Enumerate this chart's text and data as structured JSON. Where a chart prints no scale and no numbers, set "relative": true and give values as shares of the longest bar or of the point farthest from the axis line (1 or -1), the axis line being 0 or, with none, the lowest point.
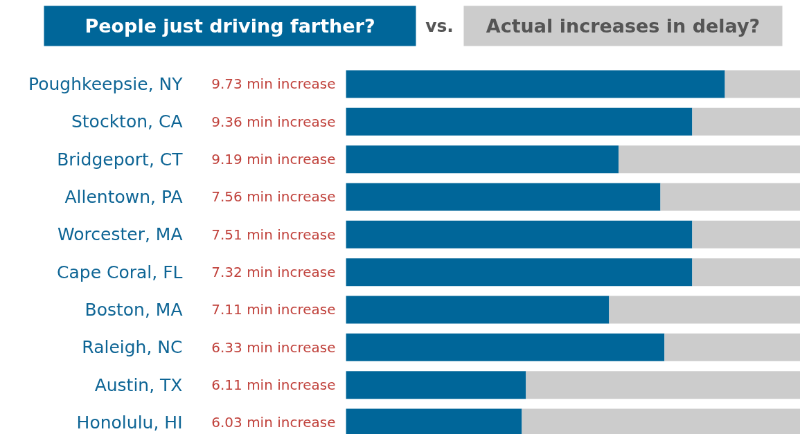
{
  "chart_data": {
    "type": "bar",
    "orientation": "horizontal",
    "stacked": true,
    "relative": true,
    "legend": "top",
    "categories": [
      "Poughkeepsie, NY",
      "Stockton, CA",
      "Bridgeport, CT",
      "Allentown, PA",
      "Worcester, MA",
      "Cape Coral, FL",
      "Boston, MA",
      "Raleigh, NC",
      "Austin, TX",
      "Honolulu, HI"
    ],
    "series": [
      {
        "name": "People just driving farther?",
        "color": "#006699",
        "values": [
          0.834,
          0.762,
          0.6,
          0.692,
          0.762,
          0.762,
          0.579,
          0.701,
          0.396,
          0.387
        ]
      },
      {
        "name": "Actual increases in delay?",
        "color": "#cccccc",
        "values": [
          0.166,
          0.238,
          0.4,
          0.308,
          0.238,
          0.238,
          0.421,
          0.299,
          0.604,
          0.613
        ]
      }
    ],
    "annotations": [
      "vs.",
      "9.73 min increase",
      "9.36 min increase",
      "9.19 min increase",
      "7.56 min increase",
      "7.51 min increase",
      "7.32 min increase",
      "7.11 min increase",
      "6.33 min increase",
      "6.11 min increase",
      "6.03 min increase"
    ]
  }
}
